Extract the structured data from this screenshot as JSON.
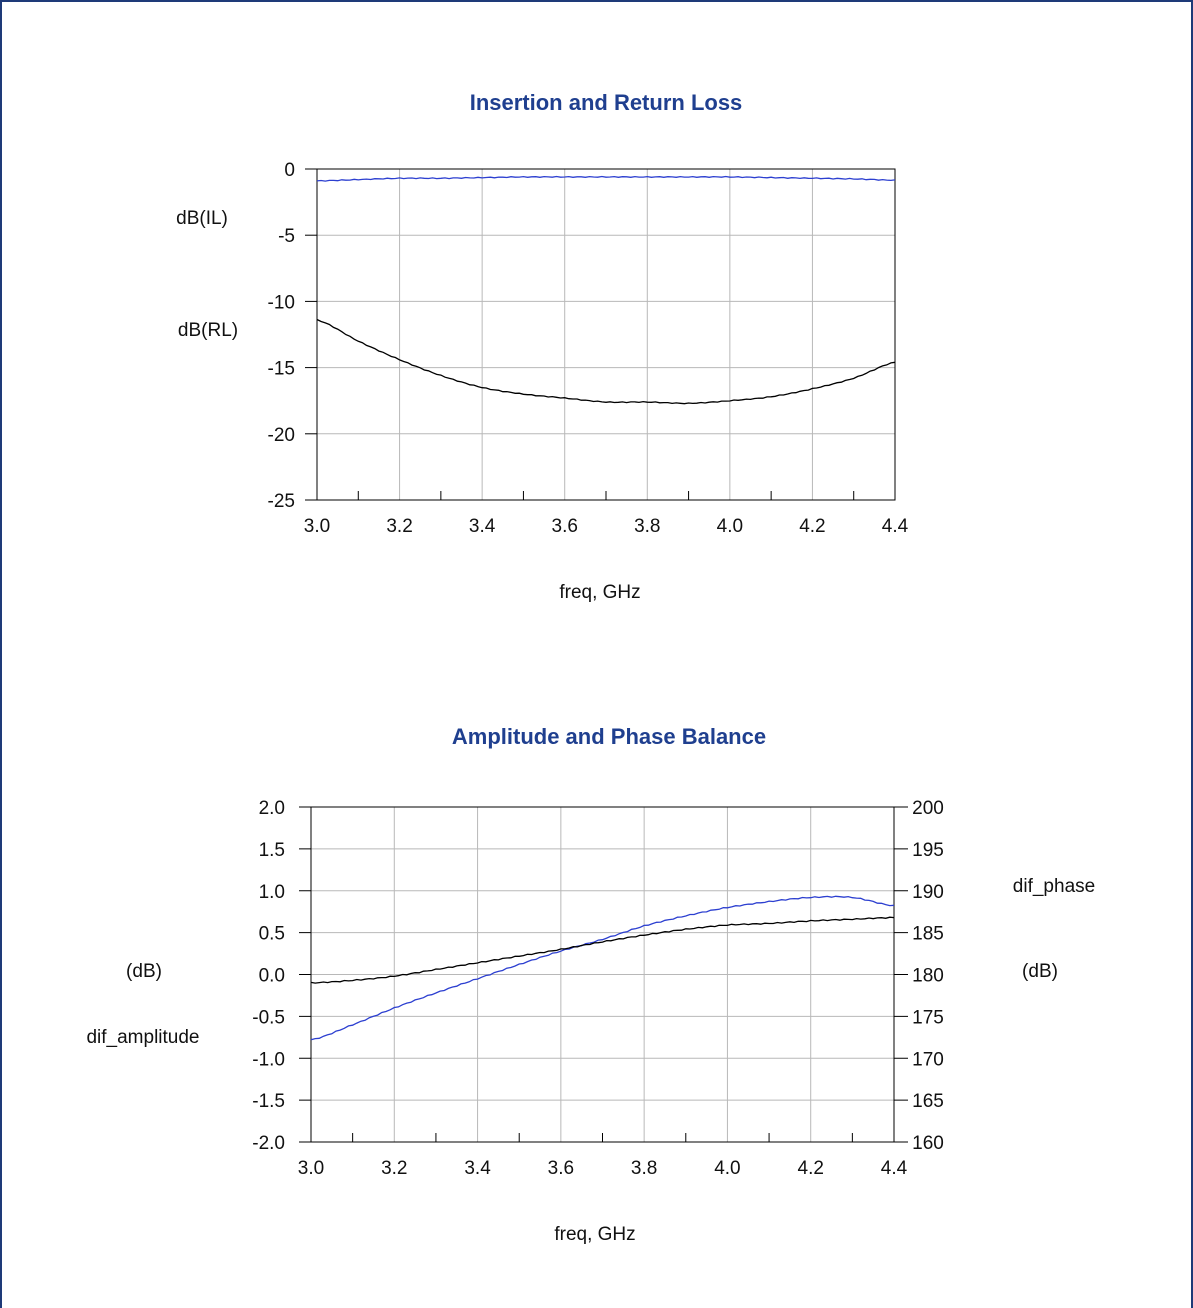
{
  "chart_data": [
    {
      "type": "line",
      "title": "Insertion and Return Loss",
      "xlabel": "freq, GHz",
      "xlim": [
        3.0,
        4.4
      ],
      "ylim": [
        -25,
        0
      ],
      "x_ticks": [
        "3.0",
        "3.2",
        "3.4",
        "3.6",
        "3.8",
        "4.0",
        "4.2",
        "4.4"
      ],
      "y_ticks": [
        "0",
        "-5",
        "-10",
        "-15",
        "-20",
        "-25"
      ],
      "grid": true,
      "x": [
        3.0,
        3.1,
        3.2,
        3.3,
        3.4,
        3.5,
        3.6,
        3.7,
        3.8,
        3.9,
        4.0,
        4.1,
        4.2,
        4.3,
        4.4
      ],
      "series": [
        {
          "name": "dB(IL)",
          "color": "#2c3fd0",
          "values": [
            -0.9,
            -0.8,
            -0.7,
            -0.7,
            -0.65,
            -0.6,
            -0.6,
            -0.6,
            -0.6,
            -0.6,
            -0.6,
            -0.65,
            -0.7,
            -0.75,
            -0.85
          ]
        },
        {
          "name": "dB(RL)",
          "color": "#000000",
          "values": [
            -11.4,
            -13.0,
            -14.4,
            -15.6,
            -16.5,
            -17.0,
            -17.3,
            -17.6,
            -17.6,
            -17.7,
            -17.5,
            -17.2,
            -16.6,
            -15.8,
            -14.6
          ]
        }
      ]
    },
    {
      "type": "line",
      "title": "Amplitude and Phase Balance",
      "xlabel": "freq, GHz",
      "xlim": [
        3.0,
        4.4
      ],
      "ylim": [
        -2.0,
        2.0
      ],
      "y2lim": [
        160,
        200
      ],
      "x_ticks": [
        "3.0",
        "3.2",
        "3.4",
        "3.6",
        "3.8",
        "4.0",
        "4.2",
        "4.4"
      ],
      "y_ticks": [
        "2.0",
        "1.5",
        "1.0",
        "0.5",
        "0.0",
        "-0.5",
        "-1.0",
        "-1.5",
        "-2.0"
      ],
      "y2_ticks": [
        "200",
        "195",
        "190",
        "185",
        "180",
        "175",
        "170",
        "165",
        "160"
      ],
      "y_unit": "(dB)",
      "y2_unit": "(dB)",
      "grid": true,
      "x": [
        3.0,
        3.1,
        3.2,
        3.3,
        3.4,
        3.5,
        3.6,
        3.7,
        3.8,
        3.9,
        4.0,
        4.1,
        4.2,
        4.3,
        4.4
      ],
      "series": [
        {
          "name": "dif_amplitude",
          "axis": "left",
          "color": "#2c3fd0",
          "values": [
            -0.78,
            -0.6,
            -0.4,
            -0.22,
            -0.05,
            0.12,
            0.28,
            0.42,
            0.58,
            0.7,
            0.8,
            0.87,
            0.92,
            0.92,
            0.82
          ]
        },
        {
          "name": "dif_phase",
          "axis": "right",
          "color": "#000000",
          "values": [
            179.0,
            179.3,
            179.8,
            180.6,
            181.4,
            182.2,
            183.0,
            183.9,
            184.7,
            185.4,
            185.9,
            186.1,
            186.4,
            186.6,
            186.8
          ]
        }
      ]
    }
  ]
}
